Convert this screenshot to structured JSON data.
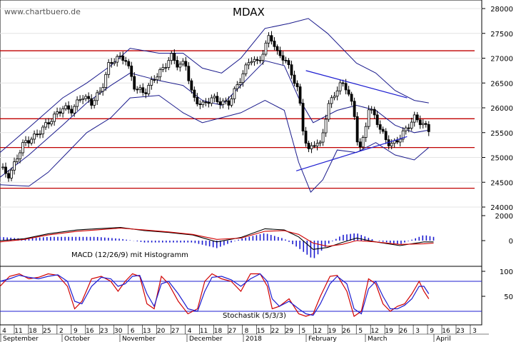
{
  "watermark": "www.chartbuero.de",
  "chart_data": [
    {
      "type": "candlestick",
      "title": "MDAX",
      "y_ticks": [
        24000,
        24500,
        25000,
        25500,
        26000,
        26500,
        27000,
        27500,
        28000
      ],
      "ylim": [
        23700,
        28150
      ],
      "horizontal_levels": [
        27150,
        25780,
        25200,
        24380
      ],
      "trendlines": [
        {
          "name": "upper",
          "from": [
            0.635,
            26750
          ],
          "to": [
            0.845,
            26200
          ]
        },
        {
          "name": "lower",
          "from": [
            0.615,
            24730
          ],
          "to": [
            0.845,
            25420
          ]
        }
      ],
      "bollinger_upper": [
        [
          0,
          25100
        ],
        [
          0.06,
          25600
        ],
        [
          0.13,
          26200
        ],
        [
          0.18,
          26500
        ],
        [
          0.23,
          26850
        ],
        [
          0.27,
          27200
        ],
        [
          0.33,
          27100
        ],
        [
          0.38,
          27100
        ],
        [
          0.42,
          26800
        ],
        [
          0.46,
          26700
        ],
        [
          0.5,
          27000
        ],
        [
          0.55,
          27600
        ],
        [
          0.6,
          27700
        ],
        [
          0.64,
          27800
        ],
        [
          0.68,
          27500
        ],
        [
          0.74,
          26900
        ],
        [
          0.78,
          26700
        ],
        [
          0.82,
          26350
        ],
        [
          0.86,
          26150
        ],
        [
          0.89,
          26100
        ]
      ],
      "bollinger_middle": [
        [
          0,
          24600
        ],
        [
          0.06,
          25050
        ],
        [
          0.13,
          25650
        ],
        [
          0.18,
          26100
        ],
        [
          0.23,
          26450
        ],
        [
          0.27,
          26700
        ],
        [
          0.33,
          26550
        ],
        [
          0.38,
          26450
        ],
        [
          0.42,
          26150
        ],
        [
          0.46,
          26050
        ],
        [
          0.5,
          26450
        ],
        [
          0.55,
          26950
        ],
        [
          0.59,
          26850
        ],
        [
          0.62,
          26200
        ],
        [
          0.65,
          25700
        ],
        [
          0.7,
          25950
        ],
        [
          0.74,
          26050
        ],
        [
          0.78,
          25950
        ],
        [
          0.82,
          25650
        ],
        [
          0.86,
          25500
        ],
        [
          0.89,
          25550
        ]
      ],
      "bollinger_lower": [
        [
          0,
          24450
        ],
        [
          0.06,
          24420
        ],
        [
          0.1,
          24700
        ],
        [
          0.14,
          25100
        ],
        [
          0.18,
          25500
        ],
        [
          0.23,
          25800
        ],
        [
          0.27,
          26200
        ],
        [
          0.33,
          26250
        ],
        [
          0.38,
          25900
        ],
        [
          0.42,
          25700
        ],
        [
          0.46,
          25800
        ],
        [
          0.5,
          25900
        ],
        [
          0.55,
          26150
        ],
        [
          0.59,
          25950
        ],
        [
          0.62,
          24900
        ],
        [
          0.645,
          24300
        ],
        [
          0.67,
          24550
        ],
        [
          0.7,
          25150
        ],
        [
          0.74,
          25100
        ],
        [
          0.78,
          25300
        ],
        [
          0.82,
          25050
        ],
        [
          0.86,
          24950
        ],
        [
          0.89,
          25200
        ]
      ],
      "close": [
        [
          0,
          24800
        ],
        [
          0.02,
          24620
        ],
        [
          0.035,
          25000
        ],
        [
          0.05,
          25300
        ],
        [
          0.07,
          25400
        ],
        [
          0.09,
          25600
        ],
        [
          0.11,
          25800
        ],
        [
          0.13,
          26000
        ],
        [
          0.15,
          25950
        ],
        [
          0.17,
          26250
        ],
        [
          0.19,
          26100
        ],
        [
          0.21,
          26350
        ],
        [
          0.225,
          26850
        ],
        [
          0.24,
          27000
        ],
        [
          0.26,
          27000
        ],
        [
          0.28,
          26400
        ],
        [
          0.3,
          26300
        ],
        [
          0.32,
          26600
        ],
        [
          0.34,
          26800
        ],
        [
          0.355,
          27050
        ],
        [
          0.37,
          26850
        ],
        [
          0.385,
          26900
        ],
        [
          0.4,
          26200
        ],
        [
          0.42,
          26050
        ],
        [
          0.44,
          26200
        ],
        [
          0.46,
          26100
        ],
        [
          0.475,
          26100
        ],
        [
          0.49,
          26400
        ],
        [
          0.505,
          26700
        ],
        [
          0.52,
          27000
        ],
        [
          0.535,
          26900
        ],
        [
          0.55,
          27200
        ],
        [
          0.56,
          27500
        ],
        [
          0.575,
          27100
        ],
        [
          0.59,
          27000
        ],
        [
          0.605,
          26700
        ],
        [
          0.62,
          26300
        ],
        [
          0.63,
          25500
        ],
        [
          0.64,
          25100
        ],
        [
          0.65,
          25300
        ],
        [
          0.665,
          25250
        ],
        [
          0.68,
          26000
        ],
        [
          0.695,
          26300
        ],
        [
          0.71,
          26500
        ],
        [
          0.72,
          26400
        ],
        [
          0.735,
          25900
        ],
        [
          0.745,
          25100
        ],
        [
          0.755,
          25400
        ],
        [
          0.765,
          26000
        ],
        [
          0.78,
          25800
        ],
        [
          0.79,
          25550
        ],
        [
          0.805,
          25300
        ],
        [
          0.815,
          25250
        ],
        [
          0.83,
          25400
        ],
        [
          0.845,
          25600
        ],
        [
          0.86,
          25800
        ],
        [
          0.875,
          25700
        ],
        [
          0.89,
          25550
        ]
      ],
      "x_tick_labels": [
        "4",
        "11",
        "18",
        "25",
        "2",
        "9",
        "16",
        "23",
        "30",
        "6",
        "13",
        "20",
        "27",
        "4",
        "11",
        "18",
        "27",
        "8",
        "15",
        "22",
        "29",
        "5",
        "12",
        "19",
        "26",
        "5",
        "12",
        "19",
        "26",
        "3",
        "9",
        "16",
        "23",
        "3"
      ],
      "month_labels": [
        "September",
        "October",
        "November",
        "December",
        "2018",
        "February",
        "March",
        "April"
      ]
    },
    {
      "type": "line",
      "title": "MACD (12/26/9) mit Histogramm",
      "y_ticks": [
        2000,
        0
      ],
      "ylim": [
        -1000,
        2600
      ],
      "series": [
        {
          "points": [
            [
              0,
              0
            ],
            [
              0.05,
              150
            ],
            [
              0.1,
              550
            ],
            [
              0.16,
              850
            ],
            [
              0.2,
              950
            ],
            [
              0.25,
              1050
            ],
            [
              0.3,
              800
            ],
            [
              0.35,
              650
            ],
            [
              0.4,
              450
            ],
            [
              0.45,
              -100
            ],
            [
              0.5,
              250
            ],
            [
              0.55,
              950
            ],
            [
              0.59,
              850
            ],
            [
              0.62,
              300
            ],
            [
              0.65,
              -700
            ],
            [
              0.68,
              -550
            ],
            [
              0.71,
              -150
            ],
            [
              0.74,
              200
            ],
            [
              0.78,
              -100
            ],
            [
              0.83,
              -400
            ],
            [
              0.88,
              -100
            ],
            [
              0.9,
              -100
            ]
          ]
        },
        {
          "points": [
            [
              0,
              -100
            ],
            [
              0.05,
              100
            ],
            [
              0.1,
              450
            ],
            [
              0.16,
              750
            ],
            [
              0.2,
              850
            ],
            [
              0.25,
              1000
            ],
            [
              0.3,
              850
            ],
            [
              0.35,
              700
            ],
            [
              0.4,
              500
            ],
            [
              0.45,
              100
            ],
            [
              0.5,
              200
            ],
            [
              0.55,
              750
            ],
            [
              0.59,
              800
            ],
            [
              0.62,
              500
            ],
            [
              0.65,
              -200
            ],
            [
              0.68,
              -450
            ],
            [
              0.71,
              -300
            ],
            [
              0.74,
              0
            ],
            [
              0.78,
              -100
            ],
            [
              0.83,
              -300
            ],
            [
              0.88,
              -250
            ],
            [
              0.9,
              -200
            ]
          ]
        }
      ]
    },
    {
      "type": "line",
      "title": "Stochastik (5/3/3)",
      "y_ticks": [
        100,
        50
      ],
      "ylim": [
        -5,
        105
      ],
      "reference_levels": [
        80,
        20
      ],
      "series": [
        {
          "points": [
            [
              0,
              70
            ],
            [
              0.02,
              90
            ],
            [
              0.04,
              95
            ],
            [
              0.06,
              85
            ],
            [
              0.08,
              88
            ],
            [
              0.1,
              95
            ],
            [
              0.12,
              92
            ],
            [
              0.14,
              70
            ],
            [
              0.155,
              25
            ],
            [
              0.17,
              40
            ],
            [
              0.19,
              85
            ],
            [
              0.21,
              90
            ],
            [
              0.23,
              80
            ],
            [
              0.245,
              60
            ],
            [
              0.26,
              80
            ],
            [
              0.275,
              95
            ],
            [
              0.29,
              90
            ],
            [
              0.305,
              35
            ],
            [
              0.32,
              25
            ],
            [
              0.335,
              90
            ],
            [
              0.35,
              75
            ],
            [
              0.37,
              40
            ],
            [
              0.39,
              15
            ],
            [
              0.41,
              25
            ],
            [
              0.425,
              80
            ],
            [
              0.44,
              95
            ],
            [
              0.46,
              85
            ],
            [
              0.48,
              80
            ],
            [
              0.5,
              60
            ],
            [
              0.52,
              95
            ],
            [
              0.54,
              95
            ],
            [
              0.555,
              70
            ],
            [
              0.565,
              25
            ],
            [
              0.58,
              30
            ],
            [
              0.6,
              45
            ],
            [
              0.62,
              15
            ],
            [
              0.635,
              10
            ],
            [
              0.65,
              15
            ],
            [
              0.665,
              50
            ],
            [
              0.685,
              90
            ],
            [
              0.7,
              92
            ],
            [
              0.72,
              60
            ],
            [
              0.735,
              10
            ],
            [
              0.75,
              20
            ],
            [
              0.765,
              85
            ],
            [
              0.78,
              75
            ],
            [
              0.795,
              35
            ],
            [
              0.81,
              20
            ],
            [
              0.825,
              30
            ],
            [
              0.84,
              35
            ],
            [
              0.855,
              55
            ],
            [
              0.87,
              80
            ],
            [
              0.88,
              60
            ],
            [
              0.89,
              45
            ]
          ]
        },
        {
          "points": [
            [
              0,
              80
            ],
            [
              0.02,
              85
            ],
            [
              0.04,
              92
            ],
            [
              0.06,
              88
            ],
            [
              0.08,
              85
            ],
            [
              0.1,
              90
            ],
            [
              0.12,
              93
            ],
            [
              0.14,
              80
            ],
            [
              0.155,
              40
            ],
            [
              0.17,
              35
            ],
            [
              0.19,
              70
            ],
            [
              0.21,
              88
            ],
            [
              0.23,
              85
            ],
            [
              0.245,
              70
            ],
            [
              0.26,
              75
            ],
            [
              0.275,
              90
            ],
            [
              0.29,
              92
            ],
            [
              0.305,
              55
            ],
            [
              0.32,
              30
            ],
            [
              0.335,
              75
            ],
            [
              0.35,
              80
            ],
            [
              0.37,
              55
            ],
            [
              0.39,
              25
            ],
            [
              0.41,
              20
            ],
            [
              0.425,
              60
            ],
            [
              0.44,
              88
            ],
            [
              0.46,
              90
            ],
            [
              0.48,
              83
            ],
            [
              0.5,
              70
            ],
            [
              0.52,
              85
            ],
            [
              0.54,
              95
            ],
            [
              0.555,
              80
            ],
            [
              0.565,
              45
            ],
            [
              0.58,
              30
            ],
            [
              0.6,
              40
            ],
            [
              0.62,
              25
            ],
            [
              0.635,
              15
            ],
            [
              0.65,
              12
            ],
            [
              0.665,
              35
            ],
            [
              0.685,
              75
            ],
            [
              0.7,
              90
            ],
            [
              0.72,
              75
            ],
            [
              0.735,
              25
            ],
            [
              0.75,
              15
            ],
            [
              0.765,
              65
            ],
            [
              0.78,
              80
            ],
            [
              0.795,
              50
            ],
            [
              0.81,
              25
            ],
            [
              0.825,
              25
            ],
            [
              0.84,
              32
            ],
            [
              0.855,
              45
            ],
            [
              0.87,
              70
            ],
            [
              0.88,
              70
            ],
            [
              0.89,
              55
            ]
          ]
        }
      ]
    }
  ]
}
